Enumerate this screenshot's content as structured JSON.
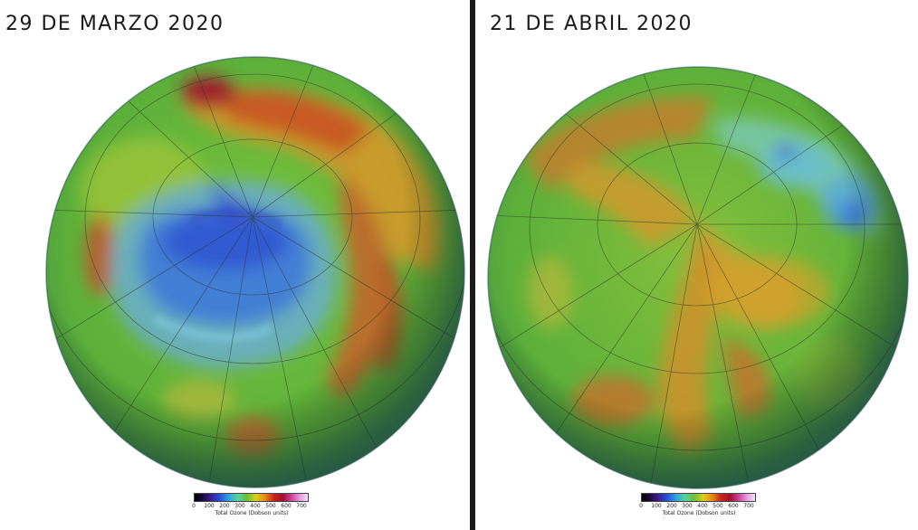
{
  "panels": [
    {
      "title": "29 DE MARZO 2020"
    },
    {
      "title": "21 DE ABRIL 2020"
    }
  ],
  "legend": {
    "ticks": [
      "0",
      "100",
      "200",
      "300",
      "400",
      "500",
      "600",
      "700"
    ],
    "label": "Total Ozone (Dobson units)",
    "colors": [
      "#000000",
      "#3b1a8c",
      "#2a4fd8",
      "#30a0e0",
      "#66c03a",
      "#d8d020",
      "#e88a1a",
      "#c2261a",
      "#d04aa0",
      "#f4e0f4"
    ]
  }
}
